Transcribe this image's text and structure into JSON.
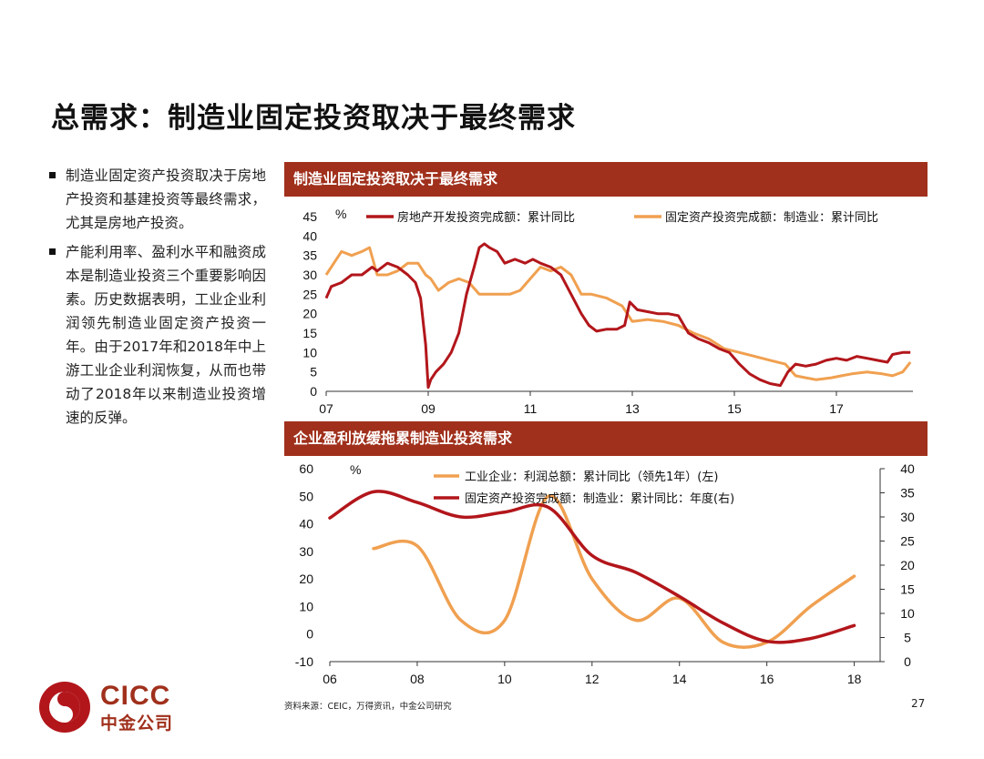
{
  "page": {
    "title": "总需求：制造业固定投资取决于最终需求",
    "page_number": "27",
    "source": "资料来源：CEIC，万得资讯，中金公司研究",
    "logo_en": "CICC",
    "logo_cn": "中金公司"
  },
  "sidebar": {
    "bullets": [
      "制造业固定资产投资取决于房地产投资和基建投资等最终需求，尤其是房地产投资。",
      "产能利用率、盈利水平和融资成本是制造业投资三个重要影响因素。历史数据表明，工业企业利润领先制造业固定资产投资一年。由于2017年和2018年中上游工业企业利润恢复，从而也带动了2018年以来制造业投资增速的反弹。"
    ]
  },
  "colors": {
    "dark_red": "#b2161b",
    "orange": "#f0a050",
    "header_bg": "#a0301c"
  },
  "chart_data": [
    {
      "type": "line",
      "title": "制造业固定投资取决于最终需求",
      "ylabel": "%",
      "ylim": [
        0,
        45
      ],
      "yticks": [
        0,
        5,
        10,
        15,
        20,
        25,
        30,
        35,
        40,
        45
      ],
      "xlim": [
        2007,
        2018.5
      ],
      "xticks": [
        2007,
        2009,
        2011,
        2013,
        2015,
        2017
      ],
      "xtick_labels": [
        "07",
        "09",
        "11",
        "13",
        "15",
        "17"
      ],
      "series": [
        {
          "name": "房地产开发投资完成额：累计同比",
          "color": "#b2161b",
          "x": [
            2007.0,
            2007.1,
            2007.3,
            2007.5,
            2007.7,
            2007.9,
            2008.0,
            2008.2,
            2008.4,
            2008.6,
            2008.75,
            2008.85,
            2008.95,
            2009.0,
            2009.05,
            2009.15,
            2009.3,
            2009.45,
            2009.6,
            2009.75,
            2009.9,
            2010.0,
            2010.1,
            2010.2,
            2010.35,
            2010.5,
            2010.7,
            2010.9,
            2011.05,
            2011.2,
            2011.4,
            2011.6,
            2011.8,
            2012.0,
            2012.15,
            2012.3,
            2012.5,
            2012.7,
            2012.85,
            2012.95,
            2013.1,
            2013.3,
            2013.5,
            2013.7,
            2013.9,
            2014.1,
            2014.3,
            2014.5,
            2014.7,
            2014.9,
            2015.1,
            2015.3,
            2015.5,
            2015.7,
            2015.9,
            2016.05,
            2016.2,
            2016.4,
            2016.6,
            2016.8,
            2017.0,
            2017.2,
            2017.4,
            2017.6,
            2017.8,
            2018.0,
            2018.1,
            2018.3,
            2018.45
          ],
          "y": [
            24,
            27,
            28,
            30,
            30,
            32,
            31,
            33,
            32,
            30,
            28,
            24,
            12,
            1,
            3,
            5,
            7,
            10,
            15,
            25,
            32,
            37,
            38,
            37,
            36,
            33,
            34,
            33,
            34,
            33,
            32,
            30,
            25,
            20,
            17,
            15.5,
            16,
            16,
            17,
            23,
            21,
            20.5,
            20,
            20,
            19.5,
            15,
            13.5,
            12.5,
            11,
            10,
            7,
            4.5,
            3,
            2,
            1.5,
            5,
            7,
            6.5,
            7,
            8,
            8.5,
            8,
            9,
            8.5,
            8,
            7.5,
            9.5,
            10,
            10
          ]
        },
        {
          "name": "固定资产投资完成额：制造业：累计同比",
          "color": "#f0a050",
          "x": [
            2007.0,
            2007.15,
            2007.3,
            2007.5,
            2007.7,
            2007.85,
            2008.0,
            2008.2,
            2008.4,
            2008.6,
            2008.8,
            2008.95,
            2009.05,
            2009.2,
            2009.4,
            2009.6,
            2009.8,
            2010.0,
            2010.2,
            2010.4,
            2010.6,
            2010.8,
            2011.0,
            2011.2,
            2011.4,
            2011.6,
            2011.8,
            2012.0,
            2012.2,
            2012.5,
            2012.8,
            2013.0,
            2013.3,
            2013.6,
            2013.9,
            2014.2,
            2014.5,
            2014.8,
            2015.1,
            2015.4,
            2015.7,
            2016.0,
            2016.2,
            2016.4,
            2016.6,
            2016.9,
            2017.1,
            2017.3,
            2017.6,
            2017.9,
            2018.1,
            2018.3,
            2018.45
          ],
          "y": [
            30,
            33,
            36,
            35,
            36,
            37,
            30,
            30,
            31,
            33,
            33,
            30,
            29,
            26,
            28,
            29,
            28,
            25,
            25,
            25,
            25,
            26,
            29,
            32,
            31,
            32,
            30,
            25,
            25,
            24,
            22,
            18,
            18.5,
            18,
            17,
            15,
            13.5,
            11,
            10,
            9,
            8,
            7,
            4,
            3.5,
            3,
            3.5,
            4,
            4.5,
            5,
            4.5,
            4,
            5,
            7.5
          ]
        }
      ]
    },
    {
      "type": "line",
      "title": "企业盈利放缓拖累制造业投资需求",
      "ylabel": "%",
      "ylim_left": [
        -10,
        60
      ],
      "yticks_left": [
        -10,
        0,
        10,
        20,
        30,
        40,
        50,
        60
      ],
      "ylim_right": [
        0,
        40
      ],
      "yticks_right": [
        0,
        5,
        10,
        15,
        20,
        25,
        30,
        35,
        40
      ],
      "xlim": [
        2006,
        2018.3
      ],
      "xticks": [
        2006,
        2008,
        2010,
        2012,
        2014,
        2016,
        2018
      ],
      "xtick_labels": [
        "06",
        "08",
        "10",
        "12",
        "14",
        "16",
        "18"
      ],
      "series": [
        {
          "name": "工业企业：利润总额：累计同比（领先1年）(左)",
          "axis": "left",
          "color": "#f0a050",
          "x": [
            2007,
            2008,
            2009,
            2010,
            2011,
            2012,
            2013,
            2014,
            2015,
            2016,
            2017,
            2018
          ],
          "y": [
            31,
            32,
            5,
            5,
            50,
            20,
            5,
            13,
            -3,
            -3,
            10,
            21
          ]
        },
        {
          "name": "固定资产投资完成额：制造业：累计同比：年度(右)",
          "axis": "right",
          "color": "#b2161b",
          "x": [
            2006,
            2007,
            2008,
            2009,
            2010,
            2011,
            2012,
            2013,
            2014,
            2015,
            2016,
            2017,
            2018
          ],
          "y": [
            29.8,
            35.2,
            33,
            30,
            31,
            32,
            22,
            18.5,
            13.5,
            8,
            4.2,
            4.8,
            7.5
          ]
        }
      ]
    }
  ]
}
